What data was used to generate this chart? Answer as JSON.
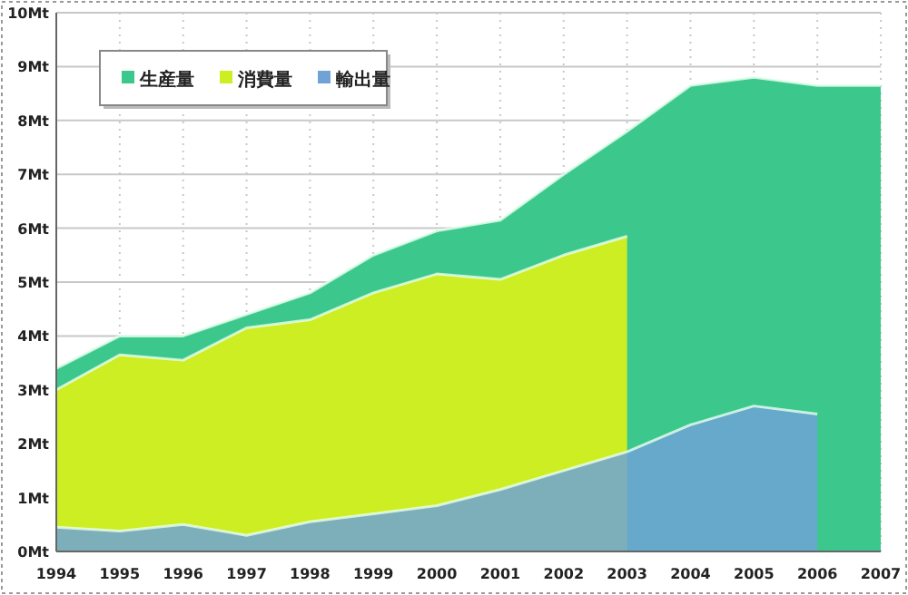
{
  "chart_data": {
    "type": "area",
    "categories": [
      "1994",
      "1995",
      "1996",
      "1997",
      "1998",
      "1999",
      "2000",
      "2001",
      "2002",
      "2003",
      "2004",
      "2005",
      "2006",
      "2007"
    ],
    "series": [
      {
        "name": "生産量",
        "color": "#3cc88c",
        "values": [
          3.4,
          4.0,
          4.0,
          4.4,
          4.8,
          5.5,
          5.95,
          6.15,
          7.0,
          7.8,
          8.65,
          8.8,
          8.65,
          8.65
        ]
      },
      {
        "name": "消費量",
        "color": "#ccee22",
        "values": [
          3.0,
          3.65,
          3.55,
          4.15,
          4.3,
          4.8,
          5.15,
          5.05,
          5.5,
          5.85,
          null,
          null,
          null,
          null
        ]
      },
      {
        "name": "輸出量",
        "color": "#6fa3d6",
        "values": [
          0.45,
          0.38,
          0.5,
          0.3,
          0.55,
          0.7,
          0.85,
          1.15,
          1.5,
          1.85,
          2.35,
          2.7,
          2.55,
          null
        ]
      }
    ],
    "ylim": [
      0,
      10
    ],
    "yticks": [
      {
        "value": 0,
        "label": "0Mt"
      },
      {
        "value": 1,
        "label": "1Mt"
      },
      {
        "value": 2,
        "label": "2Mt"
      },
      {
        "value": 3,
        "label": "3Mt"
      },
      {
        "value": 4,
        "label": "4Mt"
      },
      {
        "value": 5,
        "label": "5Mt"
      },
      {
        "value": 6,
        "label": "6Mt"
      },
      {
        "value": 7,
        "label": "7Mt"
      },
      {
        "value": 8,
        "label": "8Mt"
      },
      {
        "value": 9,
        "label": "9Mt"
      },
      {
        "value": 10,
        "label": "10Mt"
      }
    ],
    "grid": true,
    "legend": "top left"
  }
}
